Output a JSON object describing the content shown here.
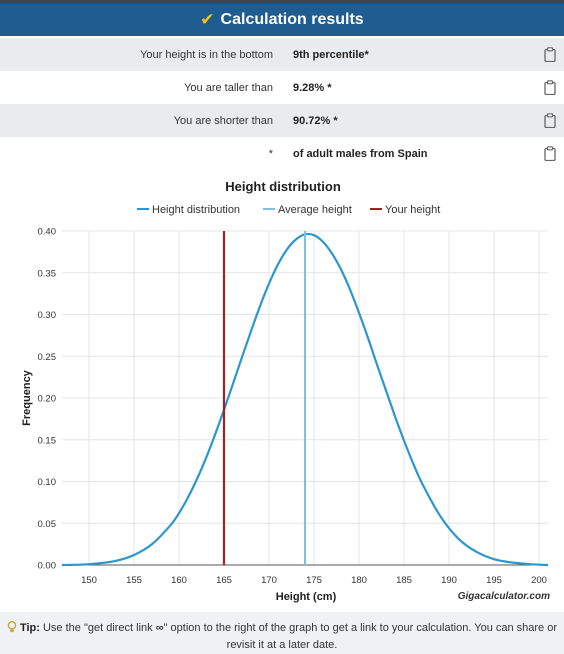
{
  "header": {
    "check_icon": "check-icon",
    "title": "Calculation results"
  },
  "results": [
    {
      "label": "Your height is in the bottom",
      "value": "9th percentile*"
    },
    {
      "label": "You are taller than",
      "value": "9.28% *"
    },
    {
      "label": "You are shorter than",
      "value": "90.72% *"
    },
    {
      "label": "*",
      "value": "of adult males from Spain"
    }
  ],
  "chart_data": {
    "type": "line",
    "title": "Height distribution",
    "xlabel": "Height (cm)",
    "ylabel": "Frequency",
    "credit": "Gigacalculator.com",
    "xlim": [
      147,
      201
    ],
    "ylim": [
      0,
      0.4
    ],
    "xticks": [
      "150",
      "155",
      "160",
      "165",
      "170",
      "175",
      "180",
      "185",
      "190",
      "195",
      "200"
    ],
    "yticks": [
      "0.00",
      "0.05",
      "0.10",
      "0.15",
      "0.20",
      "0.25",
      "0.30",
      "0.35",
      "0.40"
    ],
    "legend": [
      "Height distribution",
      "Average height",
      "Your height"
    ],
    "legend_position": "top",
    "grid": true,
    "colors": {
      "distribution": "#2b97cd",
      "average": "#7fbfe0",
      "your_height": "#a3201e"
    },
    "series": [
      {
        "name": "Height distribution",
        "x": [
          147,
          150,
          153,
          155,
          157,
          159,
          160,
          161,
          162,
          163,
          164,
          165,
          166,
          167,
          168,
          169,
          170,
          171,
          172,
          173,
          174,
          175,
          176,
          177,
          178,
          179,
          180,
          181,
          182,
          183,
          184,
          185,
          186,
          187,
          189,
          191,
          193,
          195,
          197,
          199,
          201
        ],
        "y": [
          0.0,
          0.001,
          0.005,
          0.012,
          0.025,
          0.047,
          0.062,
          0.081,
          0.103,
          0.128,
          0.156,
          0.186,
          0.217,
          0.249,
          0.28,
          0.31,
          0.337,
          0.36,
          0.378,
          0.39,
          0.396,
          0.395,
          0.387,
          0.373,
          0.354,
          0.33,
          0.302,
          0.272,
          0.24,
          0.209,
          0.178,
          0.149,
          0.122,
          0.098,
          0.059,
          0.032,
          0.016,
          0.007,
          0.003,
          0.001,
          0.0
        ]
      },
      {
        "name": "Average height",
        "x": 174
      },
      {
        "name": "Your height",
        "x": 165
      }
    ]
  },
  "tip": {
    "prefix": "Tip:",
    "text_before": "Use the \"get direct link",
    "link_glyph": "∞",
    "text_after": "\" option to the right of the graph to get a link to your calculation. You can share or revisit it at a later date."
  }
}
